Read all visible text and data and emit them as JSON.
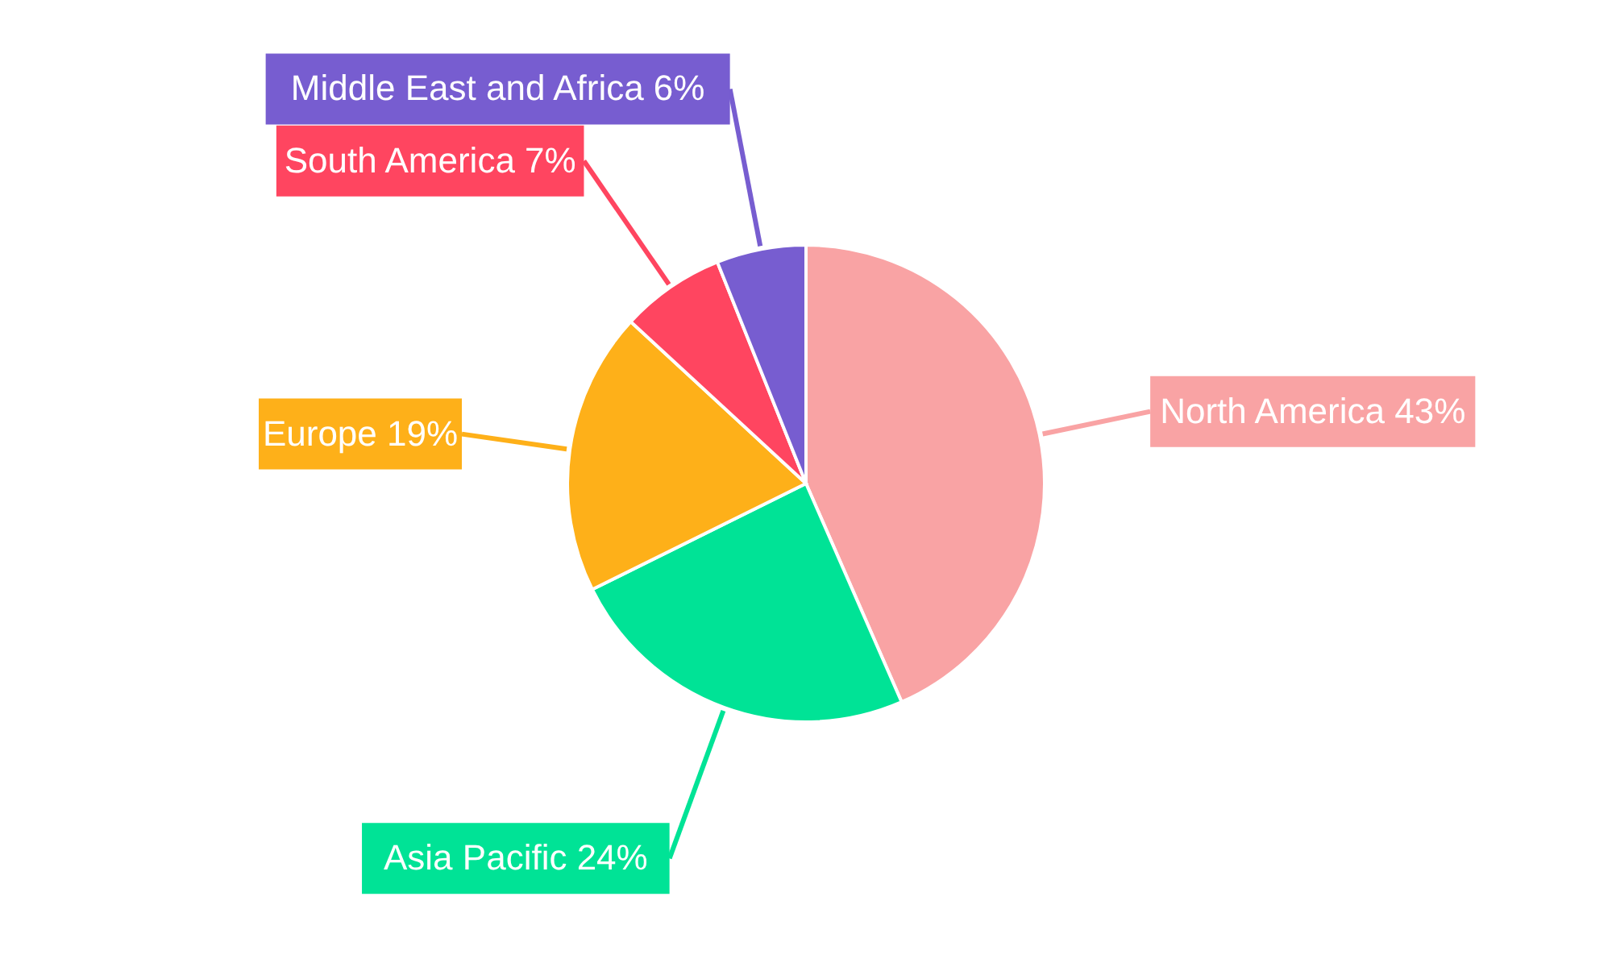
{
  "chart_data": {
    "type": "pie",
    "categories": [
      "North America",
      "Asia Pacific",
      "Europe",
      "South America",
      "Middle East and Africa"
    ],
    "values": [
      43,
      24,
      19,
      7,
      6
    ],
    "value_labels": [
      "43%",
      "24%",
      "19%",
      "7%",
      "6%"
    ],
    "colors": [
      "#f9a3a4",
      "#00e396",
      "#feb019",
      "#ff4560",
      "#775dd0"
    ]
  }
}
